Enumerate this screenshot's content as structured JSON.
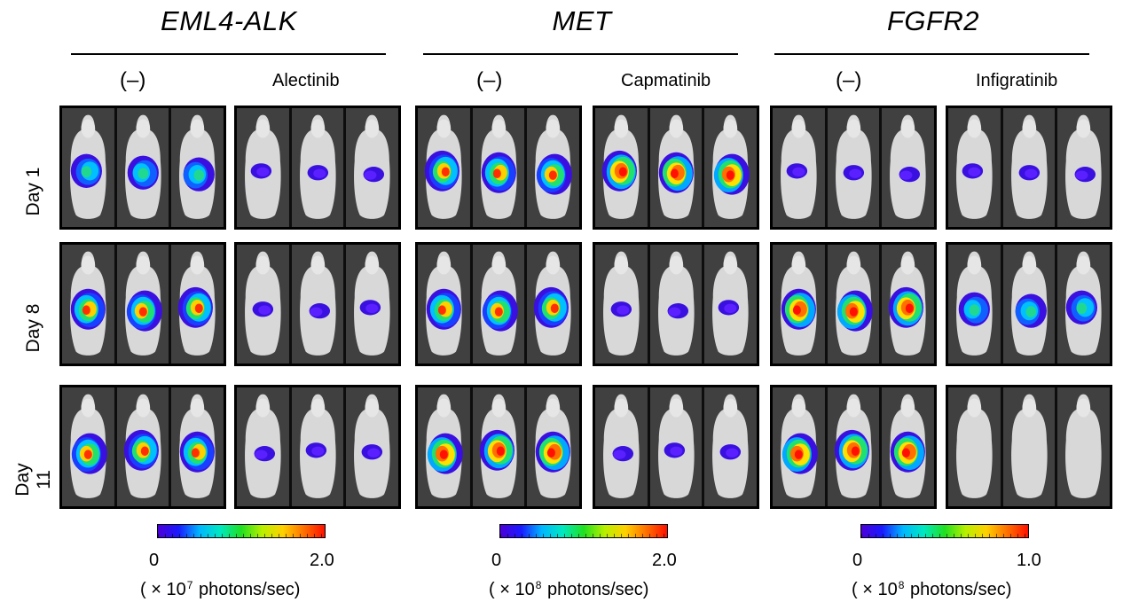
{
  "genes": [
    {
      "name": "EML4-ALK",
      "control_label": "(–)",
      "drug_label": "Alectinib"
    },
    {
      "name": "MET",
      "control_label": "(–)",
      "drug_label": "Capmatinib"
    },
    {
      "name": "FGFR2",
      "control_label": "(–)",
      "drug_label": "Infigratinib"
    }
  ],
  "days": [
    "Day 1",
    "Day 8",
    "Day 11"
  ],
  "colorbars": [
    {
      "min": "0",
      "max": "2.0",
      "unit_prefix": "( × 10",
      "exponent": "7",
      "unit_suffix": " photons/sec)"
    },
    {
      "min": "0",
      "max": "2.0",
      "unit_prefix": "( × 10",
      "exponent": "8",
      "unit_suffix": " photons/sec)"
    },
    {
      "min": "0",
      "max": "1.0",
      "unit_prefix": "( × 10",
      "exponent": "8",
      "unit_suffix": " photons/sec)"
    }
  ],
  "signal_scale": {
    "description_levels": [
      "none",
      "low",
      "medium",
      "high",
      "saturated"
    ],
    "panels": [
      [
        "medium",
        "low",
        "high",
        "saturated",
        "low",
        "low"
      ],
      [
        "high",
        "low",
        "high",
        "low",
        "saturated",
        "medium"
      ],
      [
        "high",
        "low",
        "saturated",
        "low",
        "saturated",
        "none"
      ]
    ]
  }
}
